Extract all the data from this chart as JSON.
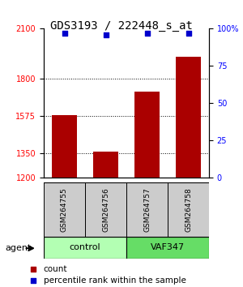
{
  "title": "GDS3193 / 222448_s_at",
  "samples": [
    "GSM264755",
    "GSM264756",
    "GSM264757",
    "GSM264758"
  ],
  "counts": [
    1580,
    1360,
    1720,
    1930
  ],
  "percentiles": [
    97,
    96,
    97,
    97
  ],
  "ylim_left": [
    1200,
    2100
  ],
  "ylim_right": [
    0,
    100
  ],
  "yticks_left": [
    1200,
    1350,
    1575,
    1800,
    2100
  ],
  "yticks_right": [
    0,
    25,
    50,
    75,
    100
  ],
  "ytick_labels_right": [
    "0",
    "25",
    "50",
    "75",
    "100%"
  ],
  "groups": [
    {
      "label": "control",
      "indices": [
        0,
        1
      ],
      "color": "#b3ffb3"
    },
    {
      "label": "VAF347",
      "indices": [
        2,
        3
      ],
      "color": "#66dd66"
    }
  ],
  "bar_color": "#aa0000",
  "dot_color": "#0000cc",
  "bar_width": 0.6,
  "grid_yticks": [
    1350,
    1575,
    1800
  ],
  "agent_label": "agent",
  "legend_count_label": "count",
  "legend_pct_label": "percentile rank within the sample",
  "sample_box_color": "#cccccc",
  "xlabel_fontsize": 7,
  "title_fontsize": 10
}
